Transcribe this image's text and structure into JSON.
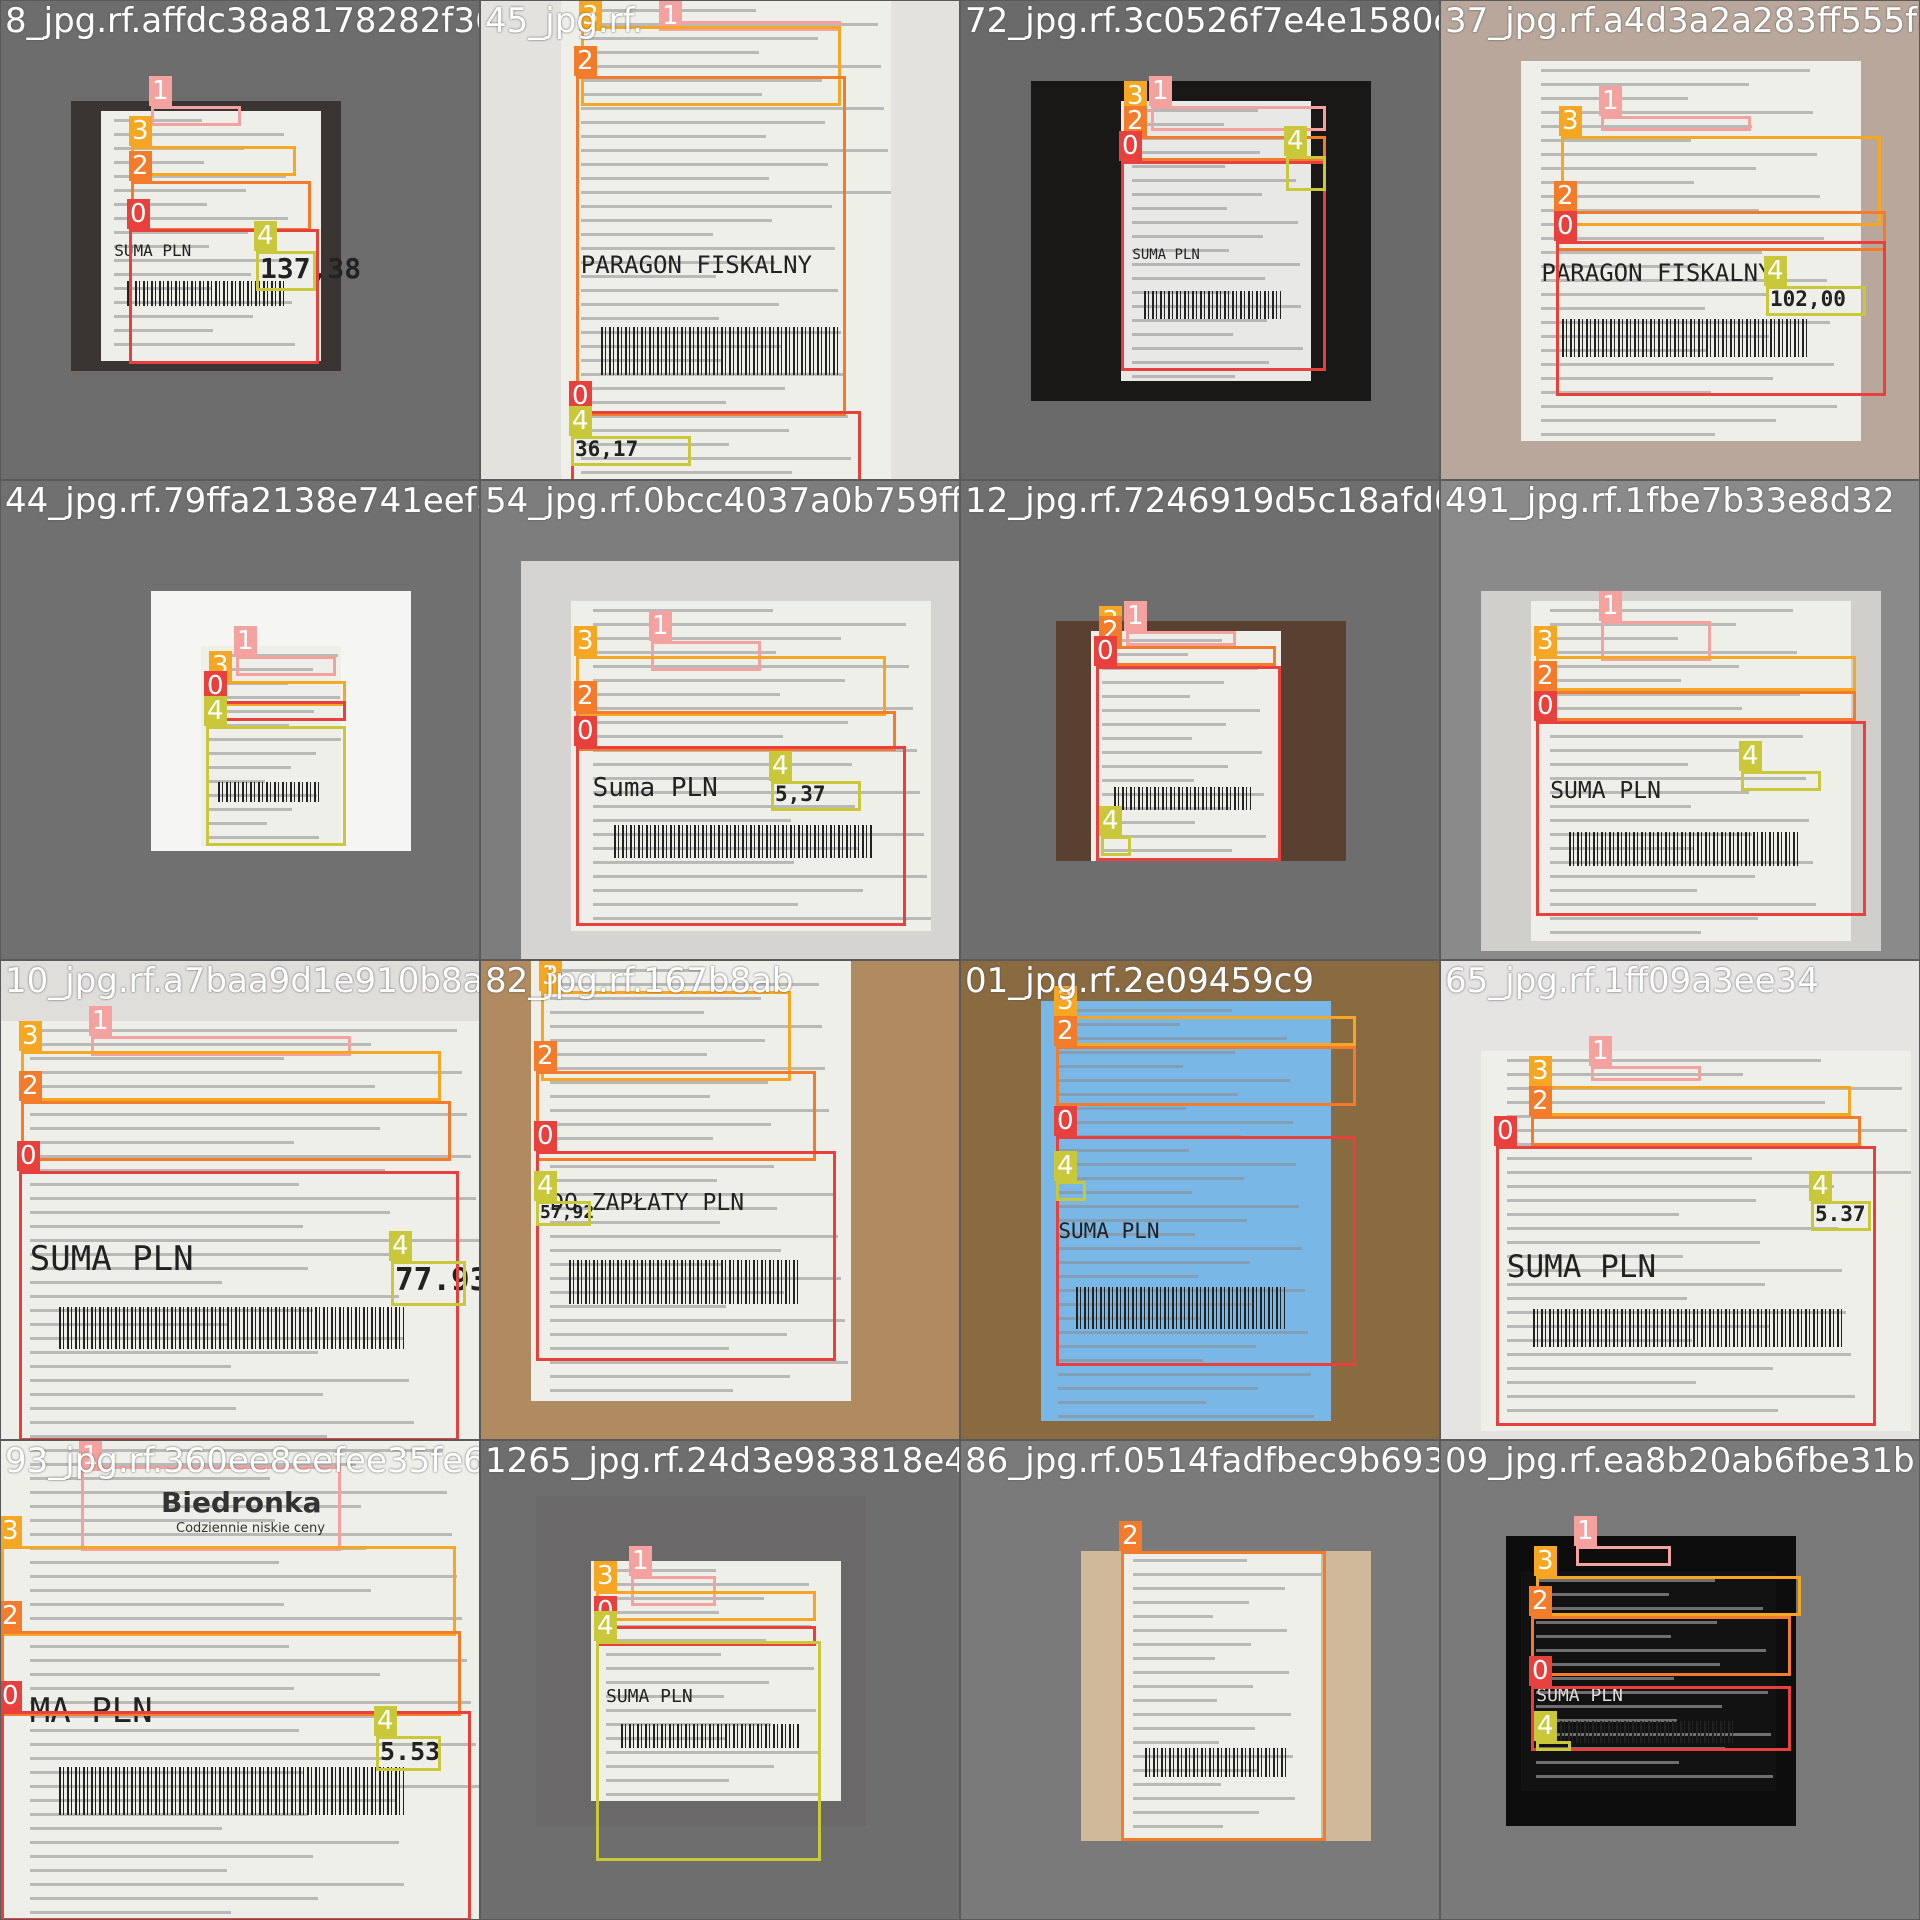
{
  "cells": [
    {
      "filename": "8_jpg.rf.affdc38a8178282f368f45019ef4f26f0f6861d8a6d78",
      "receipt_text": "SUMA PLN",
      "total": "137,38",
      "boxes": [
        {
          "label": "1"
        },
        {
          "label": "3"
        },
        {
          "label": "2"
        },
        {
          "label": "0"
        },
        {
          "label": "4"
        }
      ]
    },
    {
      "filename": "45_jpg.rf.",
      "receipt_text": "PARAGON FISKALNY",
      "total": "36,17",
      "boxes": [
        {
          "label": "1"
        },
        {
          "label": "3"
        },
        {
          "label": "2"
        },
        {
          "label": "0"
        },
        {
          "label": "4"
        }
      ]
    },
    {
      "filename": "72_jpg.rf.3c0526f7e4e1580c3871",
      "receipt_text": "SUMA PLN",
      "total": "",
      "boxes": [
        {
          "label": "3"
        },
        {
          "label": "1"
        },
        {
          "label": "2"
        },
        {
          "label": "0"
        },
        {
          "label": "4"
        }
      ]
    },
    {
      "filename": "37_jpg.rf.a4d3a2a283ff555f8",
      "receipt_text": "PARAGON FISKALNY",
      "total": "102,00",
      "boxes": [
        {
          "label": "1"
        },
        {
          "label": "3"
        },
        {
          "label": "2"
        },
        {
          "label": "0"
        },
        {
          "label": "4"
        }
      ]
    },
    {
      "filename": "44_jpg.rf.79ffa2138e741eefa54",
      "receipt_text": "",
      "total": "",
      "boxes": [
        {
          "label": "1"
        },
        {
          "label": "3"
        },
        {
          "label": "0"
        },
        {
          "label": "4"
        }
      ]
    },
    {
      "filename": "54_jpg.rf.0bcc4037a0b759ff4a",
      "receipt_text": "Suma PLN",
      "total": "5,37",
      "boxes": [
        {
          "label": "1"
        },
        {
          "label": "3"
        },
        {
          "label": "2"
        },
        {
          "label": "0"
        },
        {
          "label": "4"
        }
      ]
    },
    {
      "filename": "12_jpg.rf.7246919d5c18afd0449",
      "receipt_text": "",
      "total": "",
      "boxes": [
        {
          "label": "3"
        },
        {
          "label": "1"
        },
        {
          "label": "2"
        },
        {
          "label": "0"
        },
        {
          "label": "4"
        }
      ]
    },
    {
      "filename": "491_jpg.rf.1fbe7b33e8d32",
      "receipt_text": "SUMA PLN",
      "total": "",
      "boxes": [
        {
          "label": "1"
        },
        {
          "label": "3"
        },
        {
          "label": "2"
        },
        {
          "label": "0"
        },
        {
          "label": "4"
        }
      ]
    },
    {
      "filename": "10_jpg.rf.a7baa9d1e910b8a9",
      "receipt_text": "SUMA PLN",
      "total": "77.93",
      "boxes": [
        {
          "label": "1"
        },
        {
          "label": "3"
        },
        {
          "label": "2"
        },
        {
          "label": "0"
        },
        {
          "label": "4"
        }
      ]
    },
    {
      "filename": "82_jpg.rf.167b8ab",
      "receipt_text": "DO ZAPŁATY PLN",
      "total": "57,92",
      "boxes": [
        {
          "label": "3"
        },
        {
          "label": "2"
        },
        {
          "label": "0"
        },
        {
          "label": "4"
        }
      ]
    },
    {
      "filename": "01_jpg.rf.2e09459c9",
      "receipt_text": "SUMA PLN",
      "total": "",
      "boxes": [
        {
          "label": "3"
        },
        {
          "label": "2"
        },
        {
          "label": "0"
        },
        {
          "label": "4"
        }
      ]
    },
    {
      "filename": "65_jpg.rf.1ff09a3ee34",
      "receipt_text": "SUMA PLN",
      "total": "5.37",
      "boxes": [
        {
          "label": "1"
        },
        {
          "label": "3"
        },
        {
          "label": "2"
        },
        {
          "label": "0"
        },
        {
          "label": "4"
        }
      ]
    },
    {
      "filename": "93_jpg.rf.360ee8eefee35fe64",
      "receipt_text": "MA PLN",
      "total": "5.53",
      "brand": "Biedronka",
      "brand_sub": "Codziennie niskie ceny",
      "boxes": [
        {
          "label": "1"
        },
        {
          "label": "3"
        },
        {
          "label": "2"
        },
        {
          "label": "0"
        },
        {
          "label": "4"
        }
      ]
    },
    {
      "filename": "1265_jpg.rf.24d3e983818e4",
      "receipt_text": "SUMA PLN",
      "total": "",
      "boxes": [
        {
          "label": "1"
        },
        {
          "label": "3"
        },
        {
          "label": "0"
        },
        {
          "label": "4"
        }
      ]
    },
    {
      "filename": "86_jpg.rf.0514fadfbec9b6937",
      "receipt_text": "",
      "total": "",
      "boxes": [
        {
          "label": "2"
        }
      ]
    },
    {
      "filename": "09_jpg.rf.ea8b20ab6fbe31b",
      "receipt_text": "SUMA PLN",
      "total": "",
      "boxes": [
        {
          "label": "1"
        },
        {
          "label": "3"
        },
        {
          "label": "2"
        },
        {
          "label": "0"
        },
        {
          "label": "4"
        }
      ]
    }
  ],
  "colors": {
    "0": "#e8403c",
    "1": "#f4a2a0",
    "2": "#f27c2b",
    "3": "#f5a623",
    "4": "#c8c83a"
  }
}
